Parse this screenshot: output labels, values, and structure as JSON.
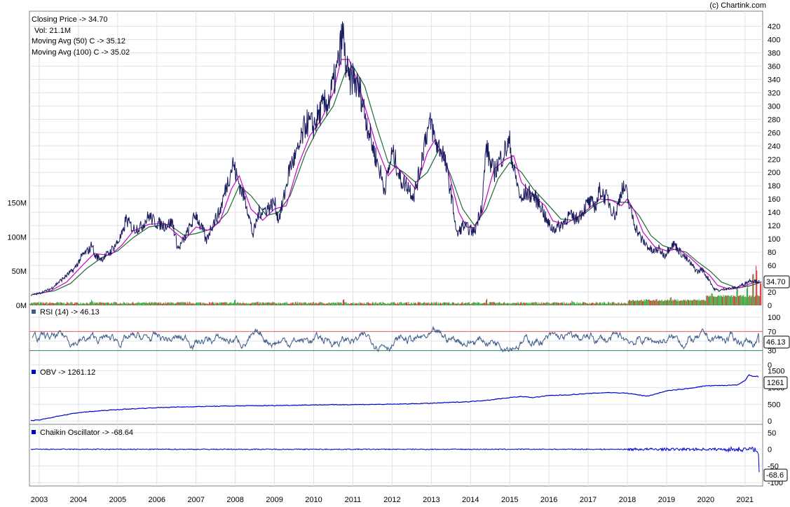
{
  "copyright": "(c) Chartink.com",
  "colors": {
    "price": "#1a1a5e",
    "ma50": "#cc00cc",
    "ma100": "#1f6b30",
    "rsi": "#3d5a8a",
    "obv": "#0000cc",
    "chaikin": "#0000cc",
    "grid": "#dde3ea",
    "vol_up": "#2ca02c",
    "vol_down": "#d62728",
    "rsi_upper": "#e06060",
    "rsi_lower": "#2e8b57"
  },
  "chart_data": [
    {
      "type": "line",
      "name": "price",
      "legend": {
        "close": "Closing Price -> 34.70",
        "vol": "Vol: 21.1M",
        "ma50": "Moving Avg (50) C -> 35.12",
        "ma100": "Moving Avg (100) C -> 35.02"
      },
      "x_ticks": [
        "2003",
        "2004",
        "2005",
        "2006",
        "2007",
        "2008",
        "2009",
        "2010",
        "2011",
        "2012",
        "2013",
        "2014",
        "2015",
        "2016",
        "2017",
        "2018",
        "2019",
        "2020",
        "2021"
      ],
      "x_range": [
        2002.75,
        2021.45
      ],
      "ylim": [
        0,
        430
      ],
      "y_ticks": [
        0,
        20,
        40,
        60,
        80,
        100,
        120,
        140,
        160,
        180,
        200,
        220,
        240,
        260,
        280,
        300,
        320,
        340,
        360,
        380,
        400,
        420
      ],
      "y_tick_labels": [
        "0",
        "20",
        "40",
        "60",
        "80",
        "100",
        "120",
        "140",
        "160",
        "180",
        "200",
        "220",
        "240",
        "260",
        "280",
        "300",
        "320",
        "340",
        "360",
        "380",
        "400",
        "420"
      ],
      "last_value_label": "34.70",
      "close_points": [
        [
          2002.75,
          15
        ],
        [
          2003.0,
          18
        ],
        [
          2003.3,
          25
        ],
        [
          2003.6,
          40
        ],
        [
          2003.9,
          55
        ],
        [
          2004.1,
          75
        ],
        [
          2004.3,
          85
        ],
        [
          2004.35,
          95
        ],
        [
          2004.4,
          75
        ],
        [
          2004.6,
          70
        ],
        [
          2004.8,
          80
        ],
        [
          2005.0,
          95
        ],
        [
          2005.15,
          110
        ],
        [
          2005.2,
          130
        ],
        [
          2005.4,
          115
        ],
        [
          2005.6,
          118
        ],
        [
          2005.8,
          135
        ],
        [
          2005.95,
          125
        ],
        [
          2006.2,
          120
        ],
        [
          2006.4,
          125
        ],
        [
          2006.5,
          95
        ],
        [
          2006.55,
          85
        ],
        [
          2006.7,
          100
        ],
        [
          2006.9,
          125
        ],
        [
          2007.0,
          138
        ],
        [
          2007.1,
          120
        ],
        [
          2007.2,
          110
        ],
        [
          2007.25,
          95
        ],
        [
          2007.4,
          120
        ],
        [
          2007.6,
          140
        ],
        [
          2007.8,
          185
        ],
        [
          2007.95,
          215
        ],
        [
          2008.0,
          200
        ],
        [
          2008.15,
          175
        ],
        [
          2008.3,
          150
        ],
        [
          2008.4,
          120
        ],
        [
          2008.45,
          105
        ],
        [
          2008.6,
          140
        ],
        [
          2008.8,
          145
        ],
        [
          2009.0,
          155
        ],
        [
          2009.1,
          130
        ],
        [
          2009.2,
          150
        ],
        [
          2009.4,
          210
        ],
        [
          2009.6,
          230
        ],
        [
          2009.8,
          275
        ],
        [
          2010.0,
          270
        ],
        [
          2010.2,
          295
        ],
        [
          2010.4,
          310
        ],
        [
          2010.6,
          355
        ],
        [
          2010.7,
          395
        ],
        [
          2010.75,
          410
        ],
        [
          2010.8,
          370
        ],
        [
          2010.9,
          335
        ],
        [
          2011.0,
          345
        ],
        [
          2011.1,
          330
        ],
        [
          2011.2,
          320
        ],
        [
          2011.3,
          290
        ],
        [
          2011.5,
          240
        ],
        [
          2011.7,
          200
        ],
        [
          2011.8,
          175
        ],
        [
          2011.9,
          200
        ],
        [
          2012.0,
          230
        ],
        [
          2012.1,
          215
        ],
        [
          2012.2,
          190
        ],
        [
          2012.4,
          180
        ],
        [
          2012.55,
          165
        ],
        [
          2012.7,
          200
        ],
        [
          2012.85,
          255
        ],
        [
          2013.0,
          275
        ],
        [
          2013.1,
          245
        ],
        [
          2013.3,
          230
        ],
        [
          2013.5,
          170
        ],
        [
          2013.6,
          130
        ],
        [
          2013.65,
          105
        ],
        [
          2013.8,
          120
        ],
        [
          2013.95,
          115
        ],
        [
          2014.1,
          110
        ],
        [
          2014.3,
          155
        ],
        [
          2014.4,
          240
        ],
        [
          2014.5,
          215
        ],
        [
          2014.6,
          200
        ],
        [
          2014.8,
          225
        ],
        [
          2015.0,
          245
        ],
        [
          2015.1,
          205
        ],
        [
          2015.2,
          180
        ],
        [
          2015.3,
          155
        ],
        [
          2015.4,
          170
        ],
        [
          2015.6,
          165
        ],
        [
          2015.8,
          150
        ],
        [
          2015.95,
          125
        ],
        [
          2016.1,
          115
        ],
        [
          2016.3,
          120
        ],
        [
          2016.5,
          135
        ],
        [
          2016.7,
          130
        ],
        [
          2016.9,
          145
        ],
        [
          2017.0,
          155
        ],
        [
          2017.2,
          150
        ],
        [
          2017.3,
          175
        ],
        [
          2017.4,
          165
        ],
        [
          2017.5,
          160
        ],
        [
          2017.6,
          145
        ],
        [
          2017.7,
          135
        ],
        [
          2017.85,
          175
        ],
        [
          2017.95,
          175
        ],
        [
          2018.05,
          150
        ],
        [
          2018.2,
          120
        ],
        [
          2018.35,
          100
        ],
        [
          2018.5,
          90
        ],
        [
          2018.65,
          80
        ],
        [
          2018.8,
          85
        ],
        [
          2018.95,
          75
        ],
        [
          2019.1,
          90
        ],
        [
          2019.2,
          92
        ],
        [
          2019.35,
          80
        ],
        [
          2019.5,
          70
        ],
        [
          2019.65,
          60
        ],
        [
          2019.8,
          50
        ],
        [
          2019.9,
          55
        ],
        [
          2020.0,
          45
        ],
        [
          2020.1,
          38
        ],
        [
          2020.2,
          25
        ],
        [
          2020.35,
          22
        ],
        [
          2020.5,
          25
        ],
        [
          2020.7,
          26
        ],
        [
          2020.85,
          28
        ],
        [
          2021.0,
          33
        ],
        [
          2021.15,
          38
        ],
        [
          2021.3,
          36
        ],
        [
          2021.42,
          34.7
        ]
      ],
      "ma50_points": [
        [
          2002.85,
          16
        ],
        [
          2003.3,
          22
        ],
        [
          2003.7,
          35
        ],
        [
          2004.1,
          60
        ],
        [
          2004.4,
          78
        ],
        [
          2004.8,
          75
        ],
        [
          2005.1,
          90
        ],
        [
          2005.4,
          112
        ],
        [
          2005.8,
          122
        ],
        [
          2006.2,
          123
        ],
        [
          2006.5,
          108
        ],
        [
          2006.7,
          98
        ],
        [
          2007.0,
          118
        ],
        [
          2007.3,
          113
        ],
        [
          2007.6,
          125
        ],
        [
          2007.9,
          175
        ],
        [
          2008.1,
          195
        ],
        [
          2008.4,
          145
        ],
        [
          2008.7,
          128
        ],
        [
          2009.0,
          145
        ],
        [
          2009.3,
          150
        ],
        [
          2009.6,
          210
        ],
        [
          2009.9,
          255
        ],
        [
          2010.2,
          280
        ],
        [
          2010.5,
          320
        ],
        [
          2010.7,
          370
        ],
        [
          2010.9,
          370
        ],
        [
          2011.1,
          340
        ],
        [
          2011.3,
          300
        ],
        [
          2011.6,
          240
        ],
        [
          2011.9,
          195
        ],
        [
          2012.1,
          210
        ],
        [
          2012.4,
          190
        ],
        [
          2012.6,
          175
        ],
        [
          2012.9,
          230
        ],
        [
          2013.1,
          250
        ],
        [
          2013.4,
          210
        ],
        [
          2013.7,
          140
        ],
        [
          2013.9,
          118
        ],
        [
          2014.1,
          117
        ],
        [
          2014.3,
          140
        ],
        [
          2014.6,
          205
        ],
        [
          2014.9,
          220
        ],
        [
          2015.1,
          225
        ],
        [
          2015.3,
          185
        ],
        [
          2015.6,
          165
        ],
        [
          2015.9,
          150
        ],
        [
          2016.1,
          127
        ],
        [
          2016.4,
          122
        ],
        [
          2016.7,
          132
        ],
        [
          2017.0,
          145
        ],
        [
          2017.3,
          160
        ],
        [
          2017.6,
          158
        ],
        [
          2017.85,
          150
        ],
        [
          2018.0,
          160
        ],
        [
          2018.2,
          140
        ],
        [
          2018.4,
          110
        ],
        [
          2018.7,
          88
        ],
        [
          2019.0,
          82
        ],
        [
          2019.3,
          85
        ],
        [
          2019.6,
          72
        ],
        [
          2019.9,
          55
        ],
        [
          2020.1,
          45
        ],
        [
          2020.3,
          30
        ],
        [
          2020.6,
          24
        ],
        [
          2020.9,
          27
        ],
        [
          2021.2,
          34
        ],
        [
          2021.42,
          35.12
        ]
      ],
      "ma100_points": [
        [
          2002.9,
          17
        ],
        [
          2003.4,
          22
        ],
        [
          2003.8,
          33
        ],
        [
          2004.2,
          55
        ],
        [
          2004.6,
          72
        ],
        [
          2005.0,
          82
        ],
        [
          2005.4,
          102
        ],
        [
          2005.8,
          118
        ],
        [
          2006.3,
          122
        ],
        [
          2006.7,
          105
        ],
        [
          2007.0,
          108
        ],
        [
          2007.4,
          115
        ],
        [
          2007.8,
          140
        ],
        [
          2008.1,
          180
        ],
        [
          2008.4,
          165
        ],
        [
          2008.8,
          135
        ],
        [
          2009.1,
          140
        ],
        [
          2009.4,
          165
        ],
        [
          2009.8,
          230
        ],
        [
          2010.1,
          265
        ],
        [
          2010.5,
          300
        ],
        [
          2010.8,
          350
        ],
        [
          2011.0,
          360
        ],
        [
          2011.3,
          330
        ],
        [
          2011.6,
          270
        ],
        [
          2011.9,
          215
        ],
        [
          2012.3,
          200
        ],
        [
          2012.6,
          185
        ],
        [
          2012.9,
          200
        ],
        [
          2013.2,
          235
        ],
        [
          2013.5,
          195
        ],
        [
          2013.8,
          145
        ],
        [
          2014.1,
          120
        ],
        [
          2014.4,
          145
        ],
        [
          2014.7,
          190
        ],
        [
          2015.0,
          215
        ],
        [
          2015.3,
          200
        ],
        [
          2015.6,
          175
        ],
        [
          2016.0,
          150
        ],
        [
          2016.3,
          130
        ],
        [
          2016.6,
          128
        ],
        [
          2016.9,
          138
        ],
        [
          2017.2,
          152
        ],
        [
          2017.5,
          160
        ],
        [
          2017.8,
          155
        ],
        [
          2018.0,
          155
        ],
        [
          2018.3,
          135
        ],
        [
          2018.6,
          105
        ],
        [
          2018.9,
          90
        ],
        [
          2019.2,
          84
        ],
        [
          2019.5,
          80
        ],
        [
          2019.8,
          65
        ],
        [
          2020.1,
          52
        ],
        [
          2020.4,
          35
        ],
        [
          2020.8,
          26
        ],
        [
          2021.1,
          29
        ],
        [
          2021.42,
          35.02
        ]
      ],
      "volume_axis": {
        "ylim": [
          0,
          170
        ],
        "ticks": [
          0,
          50,
          100,
          150
        ],
        "tick_labels": [
          "0M",
          "50M",
          "100M",
          "150M"
        ]
      },
      "volume_spikes": [
        [
          2004.35,
          8
        ],
        [
          2008.0,
          9
        ],
        [
          2010.75,
          9
        ],
        [
          2014.4,
          10
        ],
        [
          2016.6,
          8
        ],
        [
          2019.1,
          12
        ],
        [
          2020.15,
          18
        ],
        [
          2020.8,
          35
        ],
        [
          2021.05,
          30
        ],
        [
          2021.2,
          48
        ],
        [
          2021.3,
          62
        ],
        [
          2021.4,
          35
        ]
      ]
    },
    {
      "type": "line",
      "name": "rsi",
      "title": "RSI (14) -> 46.13",
      "ylim": [
        0,
        100
      ],
      "y_ticks": [
        0,
        30,
        50,
        70,
        100
      ],
      "y_tick_labels": [
        "0",
        "30",
        "50",
        "70",
        "100"
      ],
      "reference_lines": [
        30,
        70
      ],
      "last_value_label": "46.13"
    },
    {
      "type": "line",
      "name": "obv",
      "title": "OBV -> 1261.12",
      "ylim": [
        -100,
        1550
      ],
      "y_ticks": [
        0,
        500,
        1000,
        1500
      ],
      "y_tick_labels": [
        "0",
        "500",
        "1000",
        "1500"
      ],
      "last_value_label": "1261",
      "points": [
        [
          2002.75,
          10
        ],
        [
          2003.0,
          30
        ],
        [
          2003.5,
          150
        ],
        [
          2004.0,
          250
        ],
        [
          2004.5,
          300
        ],
        [
          2005.0,
          340
        ],
        [
          2006.0,
          400
        ],
        [
          2007.0,
          430
        ],
        [
          2008.0,
          450
        ],
        [
          2009.0,
          460
        ],
        [
          2010.0,
          480
        ],
        [
          2011.0,
          490
        ],
        [
          2012.0,
          500
        ],
        [
          2013.0,
          530
        ],
        [
          2014.0,
          580
        ],
        [
          2014.5,
          630
        ],
        [
          2015.0,
          700
        ],
        [
          2015.3,
          730
        ],
        [
          2015.6,
          700
        ],
        [
          2016.0,
          760
        ],
        [
          2016.5,
          780
        ],
        [
          2017.0,
          820
        ],
        [
          2017.5,
          850
        ],
        [
          2018.0,
          830
        ],
        [
          2018.5,
          740
        ],
        [
          2018.7,
          800
        ],
        [
          2019.0,
          900
        ],
        [
          2019.5,
          960
        ],
        [
          2020.0,
          1050
        ],
        [
          2020.5,
          1060
        ],
        [
          2020.8,
          1080
        ],
        [
          2021.0,
          1200
        ],
        [
          2021.1,
          1380
        ],
        [
          2021.2,
          1320
        ],
        [
          2021.3,
          1340
        ],
        [
          2021.42,
          1261
        ]
      ]
    },
    {
      "type": "line",
      "name": "chaikin",
      "title": "Chaikin Oscillator -> -68.64",
      "ylim": [
        -110,
        60
      ],
      "y_ticks": [
        -100,
        -50,
        0,
        50
      ],
      "y_tick_labels": [
        "-100",
        "-50",
        "0",
        "50"
      ],
      "last_value_label": "-68.6"
    }
  ]
}
